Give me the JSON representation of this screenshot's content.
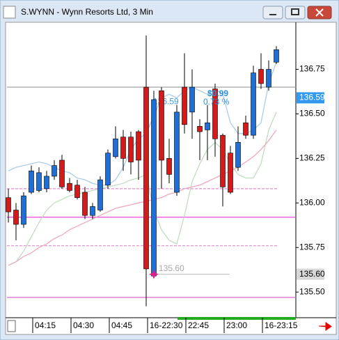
{
  "chart_data": {
    "type": "candlestick",
    "title": "S.WYNN - Wynn Resorts Ltd, 3 Min",
    "categories": [
      null,
      null,
      null,
      "04:15",
      null,
      null,
      null,
      null,
      "04:30",
      null,
      null,
      null,
      null,
      "04:45",
      null,
      null,
      null,
      null,
      "16-22:30",
      null,
      null,
      null,
      null,
      "22:45",
      null,
      null,
      null,
      null,
      "23:00",
      null,
      null,
      null,
      null,
      "16-23:15",
      null,
      null
    ],
    "open": [
      136.03,
      135.96,
      135.88,
      136.06,
      136.07,
      136.08,
      136.15,
      136.24,
      136.11,
      136.1,
      136.06,
      135.93,
      135.96,
      136.1,
      136.26,
      136.37,
      136.37,
      136.4,
      136.65,
      135.59,
      136.63,
      136.25,
      136.06,
      136.65,
      136.51,
      136.43,
      136.41,
      136.64,
      136.38,
      136.28,
      136.2,
      136.45,
      136.38,
      136.75,
      136.65,
      136.79
    ],
    "close": [
      135.95,
      135.88,
      136.04,
      136.18,
      136.17,
      136.15,
      136.21,
      136.09,
      136.07,
      136.03,
      135.93,
      135.98,
      136.13,
      136.28,
      136.36,
      136.25,
      136.23,
      136.24,
      135.63,
      136.58,
      136.24,
      136.16,
      136.51,
      136.44,
      136.65,
      136.4,
      136.45,
      136.36,
      136.09,
      136.06,
      136.34,
      136.38,
      136.73,
      136.67,
      136.75,
      136.86
    ],
    "high": [
      136.08,
      136.0,
      136.06,
      136.21,
      136.2,
      136.18,
      136.24,
      136.27,
      136.14,
      136.13,
      136.09,
      136.0,
      136.15,
      136.3,
      136.43,
      136.41,
      136.4,
      136.41,
      136.94,
      136.63,
      136.65,
      136.36,
      136.55,
      136.84,
      136.75,
      136.47,
      136.55,
      136.67,
      136.39,
      136.32,
      136.43,
      136.49,
      136.77,
      136.84,
      136.8,
      136.88
    ],
    "low": [
      135.89,
      135.79,
      135.86,
      136.05,
      136.06,
      136.06,
      136.13,
      136.08,
      136.06,
      136.02,
      135.91,
      135.91,
      135.95,
      136.08,
      136.25,
      136.18,
      136.16,
      136.13,
      135.42,
      135.58,
      136.08,
      136.11,
      136.04,
      136.39,
      136.36,
      136.24,
      136.24,
      136.26,
      135.98,
      136.05,
      136.18,
      136.36,
      136.36,
      136.64,
      136.63,
      136.78
    ],
    "up_color": "#1f6fd6",
    "down_color": "#d41b1b",
    "lines": [
      {
        "color": "#a9cdea",
        "values": [
          136.18,
          136.2,
          136.21,
          136.22,
          136.23,
          136.22,
          136.2,
          136.18,
          136.17,
          136.14,
          136.13,
          136.11,
          136.1,
          136.1,
          136.13,
          136.2,
          136.3,
          136.36,
          136.39,
          136.49,
          136.59,
          136.61,
          136.59,
          136.63,
          136.65,
          136.63,
          136.61,
          136.64,
          136.61,
          136.45,
          136.39,
          136.39,
          136.41,
          136.45,
          136.67,
          136.79
        ]
      },
      {
        "color": "#c2dcc2",
        "values": [
          135.65,
          135.67,
          135.73,
          135.81,
          135.89,
          135.96,
          136.0,
          136.02,
          136.04,
          136.05,
          136.06,
          136.07,
          136.08,
          136.09,
          136.1,
          136.11,
          136.13,
          136.14,
          136.16,
          135.96,
          135.85,
          135.79,
          135.77,
          135.93,
          136.12,
          136.22,
          136.3,
          136.34,
          136.3,
          136.22,
          136.16,
          136.14,
          136.14,
          136.22,
          136.41,
          136.51
        ]
      },
      {
        "color": "#f0a8c0",
        "values": [
          135.65,
          135.67,
          135.7,
          135.72,
          135.75,
          135.77,
          135.8,
          135.82,
          135.85,
          135.87,
          135.89,
          135.91,
          135.93,
          135.95,
          135.97,
          135.98,
          135.99,
          136.0,
          136.01,
          136.02,
          136.03,
          136.05,
          136.06,
          136.08,
          136.09,
          136.1,
          136.12,
          136.14,
          136.16,
          136.18,
          136.2,
          136.23,
          136.26,
          136.3,
          136.35,
          136.41
        ]
      }
    ],
    "levels": [
      {
        "value": 136.65,
        "color": "#9a9a9a",
        "dashed": false
      },
      {
        "value": 136.08,
        "color": "#e58ad0",
        "dashed": true
      },
      {
        "value": 135.92,
        "color": "#ee44dd",
        "dashed": false
      },
      {
        "value": 135.76,
        "color": "#e58ad0",
        "dashed": true
      },
      {
        "value": 135.47,
        "color": "#dd66cc",
        "dashed": false
      }
    ],
    "last_price": 136.59,
    "session_low": {
      "value": 135.6,
      "label": "135.60"
    },
    "change": "$0.99",
    "change_pct": "0.73 %",
    "ylim": [
      135.36,
      137.01
    ],
    "yticks": [
      {
        "value": 135.5,
        "label": "135.50"
      },
      135.75,
      {
        "value": 136,
        "label": "136.00"
      },
      136.25,
      {
        "value": 136.5,
        "label": "136.50"
      },
      136.75
    ]
  }
}
